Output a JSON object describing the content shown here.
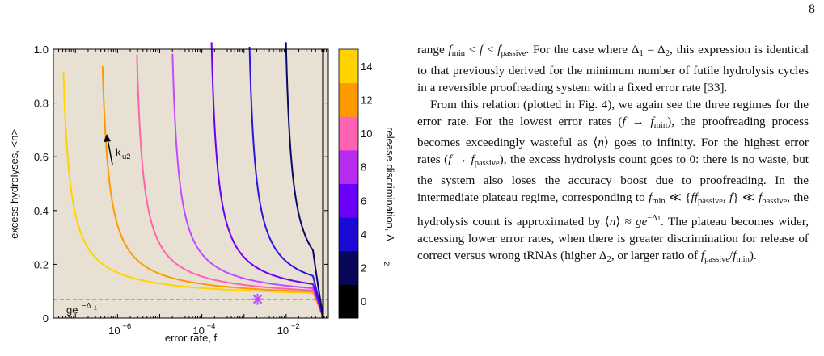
{
  "page": {
    "number": "8"
  },
  "figure": {
    "colors": {
      "background": "#e8e1d3",
      "curves": [
        "#ffd200",
        "#ff9900",
        "#ff62b0",
        "#c24bff",
        "#6a00f5",
        "#2a17df",
        "#0a0a6a",
        "#000000"
      ],
      "marker": "#c24bff",
      "colorbar": [
        "#000000",
        "#07085a",
        "#1a0ad4",
        "#6a00f5",
        "#b72cf0",
        "#ff62b0",
        "#ff9900",
        "#ffd200"
      ]
    },
    "chart_data": {
      "type": "line",
      "title": "",
      "xlabel": "error rate, f",
      "ylabel": "excess hydrolyses, <n>",
      "xscale": "log",
      "xlim": [
        3e-08,
        0.1
      ],
      "ylim": [
        0,
        1.0
      ],
      "x_ticks": [
        {
          "value": 1e-06,
          "label": "10",
          "exp": "−6"
        },
        {
          "value": 0.0001,
          "label": "10",
          "exp": "−4"
        },
        {
          "value": 0.01,
          "label": "10",
          "exp": "−2"
        }
      ],
      "y_ticks": [
        "0",
        "0.2",
        "0.4",
        "0.6",
        "0.8",
        "1.0"
      ],
      "series_param": "Δ2",
      "series": [
        {
          "delta2": 14,
          "fmin": 3.5e-08
        },
        {
          "delta2": 12,
          "fmin": 3e-07
        },
        {
          "delta2": 10,
          "fmin": 2e-06
        },
        {
          "delta2": 8,
          "fmin": 1.4e-05
        },
        {
          "delta2": 6,
          "fmin": 0.00012
        },
        {
          "delta2": 4,
          "fmin": 0.00095
        },
        {
          "delta2": 2,
          "fmin": 0.007
        },
        {
          "delta2": 0,
          "fmin": 0.075
        }
      ],
      "fpassive": 0.075,
      "plateau_g": 0.07,
      "plateau_label": {
        "base": "ge",
        "exp": "−Δ",
        "exp_sub": "1"
      },
      "marker": {
        "x": 0.0021,
        "y": 0.07,
        "shape": "asterisk"
      },
      "annotation": {
        "text": "k",
        "sub": "u2",
        "direction": "arrow-up"
      },
      "colorbar": {
        "label": "release discrimination, Δ",
        "label_sub": "2",
        "range": [
          -1,
          15
        ],
        "ticks": [
          "0",
          "2",
          "4",
          "6",
          "8",
          "10",
          "12",
          "14"
        ]
      }
    }
  },
  "text": {
    "p1": {
      "before_fmin": "range ",
      "f": "f",
      "min": "min",
      "lt1": " < ",
      "f2": "f",
      "lt2": " < ",
      "f3": "f",
      "passive": "passive",
      "after1": ". For the case where Δ",
      "one": "1",
      "eq": " = Δ",
      "two": "2",
      "after2": ", this expression is identical to that previously derived for the minimum number of futile hydrolysis cycles in a reversible proofreading system with a fixed error rate [33]."
    },
    "p2": {
      "t1": "From this relation (plotted in Fig. 4), we again see the three regimes for the error rate. For the lowest error rates (",
      "t2": " → ",
      "t3": "), the proofreading process becomes exceedingly wasteful as ⟨",
      "n": "n",
      "t4": "⟩ goes to infinity. For the highest error rates (",
      "t5": " → ",
      "t6": "), the excess hydrolysis count goes to 0: there is no waste, but the system also loses the accuracy boost due to proofreading. In the intermediate plateau regime, corresponding to ",
      "t7": " ≪ {",
      "t8": "} ≪ ",
      "t9": ", the hydrolysis count is approximated by ⟨",
      "t10": "⟩ ≈ ",
      "g": "ge",
      "exp": "−Δ",
      "expsub": "1",
      "t11": ". The plateau becomes wider, accessing lower error rates, when there is greater discrimination for release of correct versus wrong tRNAs (higher Δ",
      "two": "2",
      "t12": ", or larger ratio of ",
      "t13": "/",
      "t14": ")."
    }
  }
}
